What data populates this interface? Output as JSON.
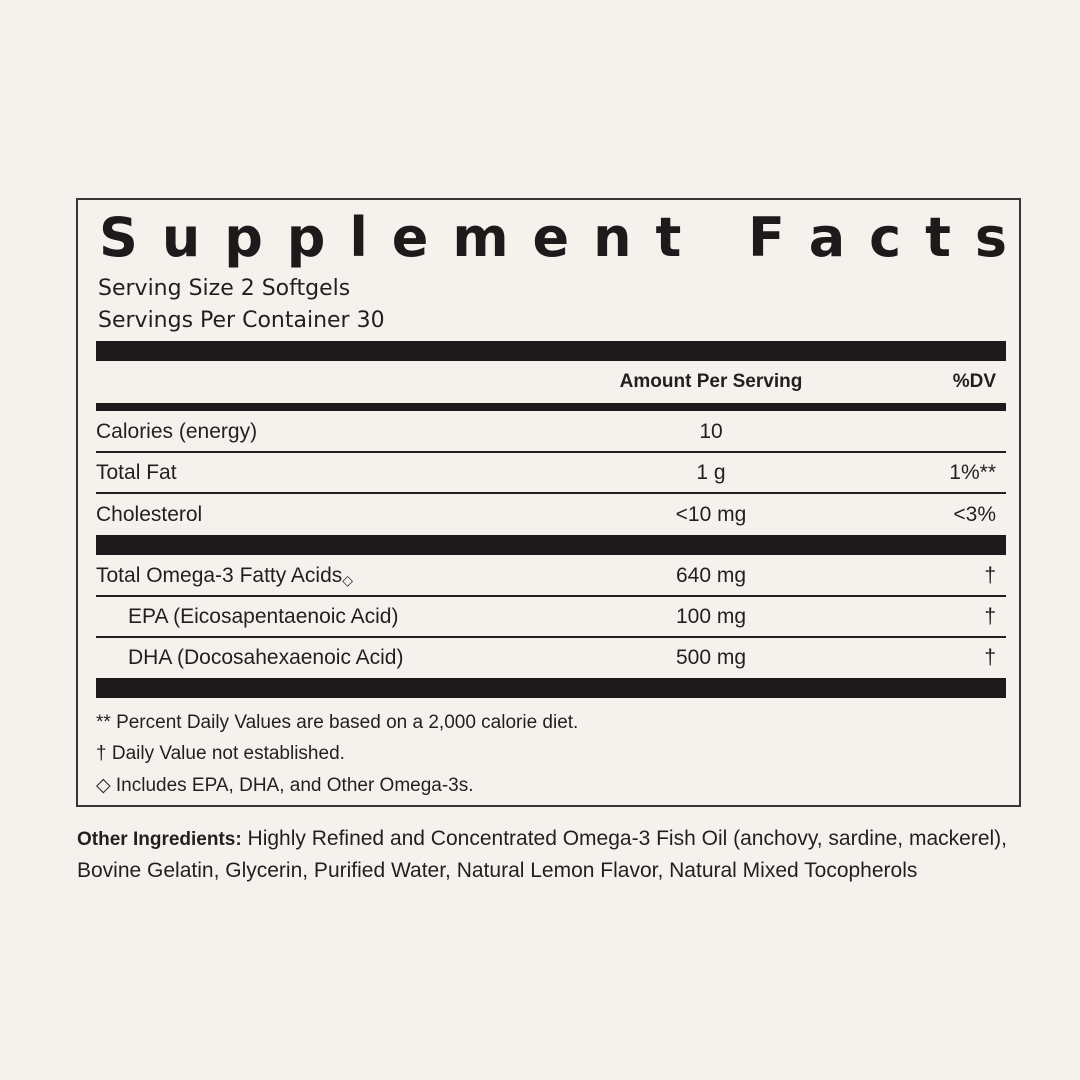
{
  "title": "Supplement Facts",
  "serving_size": "Serving Size 2 Softgels",
  "servings_per_container": "Servings Per Container 30",
  "header": {
    "amount": "Amount Per Serving",
    "dv": "%DV"
  },
  "rows": [
    {
      "name": "Calories (energy)",
      "amount": "10",
      "dv": ""
    },
    {
      "name": "Total Fat",
      "amount": "1 g",
      "dv": "1%**"
    },
    {
      "name": "Cholesterol",
      "amount": "<10 mg",
      "dv": "<3%"
    },
    {
      "name": "Total Omega-3 Fatty Acids",
      "marker": "◇",
      "amount": "640 mg",
      "dv": "†"
    },
    {
      "name": "EPA (Eicosapentaenoic Acid)",
      "amount": "100 mg",
      "dv": "†"
    },
    {
      "name": "DHA (Docosahexaenoic Acid)",
      "amount": "500 mg",
      "dv": "†"
    }
  ],
  "footnotes": [
    "** Percent Daily Values are based on a 2,000 calorie diet.",
    "† Daily Value not established.",
    "◇ Includes EPA, DHA, and Other Omega-3s."
  ],
  "other_ingredients": {
    "label": "Other Ingredients:",
    "text": "Highly Refined and Concentrated Omega-3 Fish Oil (anchovy, sardine, mackerel), Bovine Gelatin, Glycerin, Purified Water, Natural Lemon Flavor, Natural Mixed Tocopherols"
  }
}
